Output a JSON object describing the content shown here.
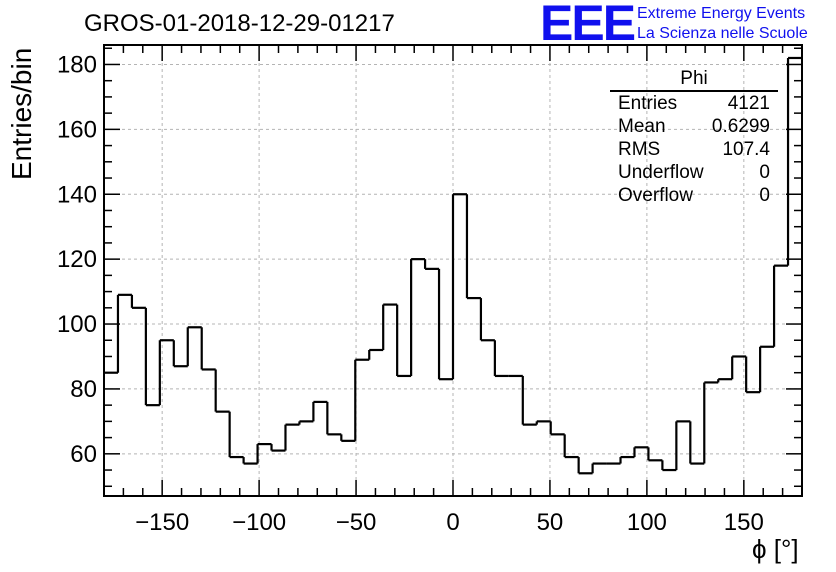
{
  "header": {
    "title": "GROS-01-2018-12-29-01217",
    "logo_mark": "EEE",
    "logo_line1": "Extreme Energy Events",
    "logo_line2": "La Scienza nelle Scuole"
  },
  "stats_box": {
    "name": "Phi",
    "rows": [
      {
        "label": "Entries",
        "value": "4121"
      },
      {
        "label": "Mean",
        "value": "0.6299"
      },
      {
        "label": "RMS",
        "value": "107.4"
      },
      {
        "label": "Underflow",
        "value": "0"
      },
      {
        "label": "Overflow",
        "value": "0"
      }
    ]
  },
  "chart_data": {
    "type": "histogram",
    "title": "GROS-01-2018-12-29-01217",
    "xlabel": "ϕ [°]",
    "ylabel": "Entries/bin",
    "xlim": [
      -180,
      180
    ],
    "ylim": [
      47,
      186
    ],
    "bin_width": 7.2,
    "grid": true,
    "x_ticks": [
      "−150",
      "−100",
      "−50",
      "0",
      "50",
      "100",
      "150"
    ],
    "x_tick_values": [
      -150,
      -100,
      -50,
      0,
      50,
      100,
      150
    ],
    "y_ticks": [
      "60",
      "80",
      "100",
      "120",
      "140",
      "160",
      "180"
    ],
    "y_tick_values": [
      60,
      80,
      100,
      120,
      140,
      160,
      180
    ],
    "values": [
      85,
      109,
      105,
      75,
      95,
      87,
      99,
      86,
      73,
      59,
      57,
      63,
      61,
      69,
      70,
      76,
      66,
      64,
      89,
      92,
      106,
      84,
      120,
      117,
      83,
      140,
      108,
      95,
      84,
      84,
      69,
      70,
      66,
      59,
      54,
      57,
      57,
      59,
      62,
      58,
      55,
      70,
      57,
      82,
      83,
      90,
      79,
      93,
      118,
      182
    ]
  },
  "colors": {
    "axis": "#000000",
    "grid": "#b4b4b4",
    "logo": "#1010ee"
  }
}
